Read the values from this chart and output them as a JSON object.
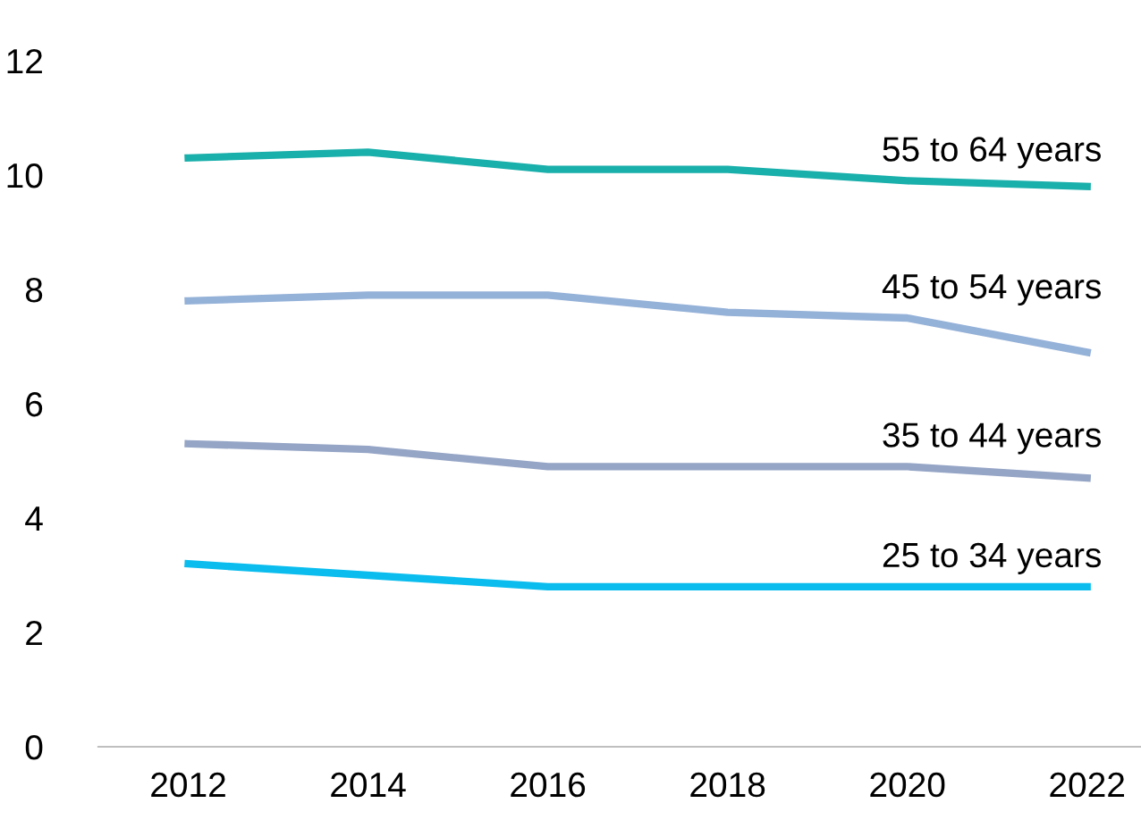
{
  "chart_data": {
    "type": "line",
    "x": [
      2012,
      2014,
      2016,
      2018,
      2020,
      2022
    ],
    "series": [
      {
        "name": "55 to 64 years",
        "color": "#19afab",
        "values": [
          10.3,
          10.4,
          10.1,
          10.1,
          9.9,
          9.8
        ]
      },
      {
        "name": "45 to 54 years",
        "color": "#94b1d8",
        "values": [
          7.8,
          7.9,
          7.9,
          7.6,
          7.5,
          6.9
        ]
      },
      {
        "name": "35 to 44 years",
        "color": "#95a5c6",
        "values": [
          5.3,
          5.2,
          4.9,
          4.9,
          4.9,
          4.7
        ]
      },
      {
        "name": "25 to 34 years",
        "color": "#0abdee",
        "values": [
          3.2,
          3.0,
          2.8,
          2.8,
          2.8,
          2.8
        ]
      }
    ],
    "xlim": [
      2011,
      2022.6
    ],
    "xticks": [
      2012,
      2014,
      2016,
      2018,
      2020,
      2022
    ],
    "ylim": [
      0,
      12
    ],
    "yticks": [
      0,
      2,
      4,
      6,
      8,
      10,
      12
    ],
    "grid": false,
    "legend": false,
    "marker": "none",
    "line_style": "solid"
  }
}
